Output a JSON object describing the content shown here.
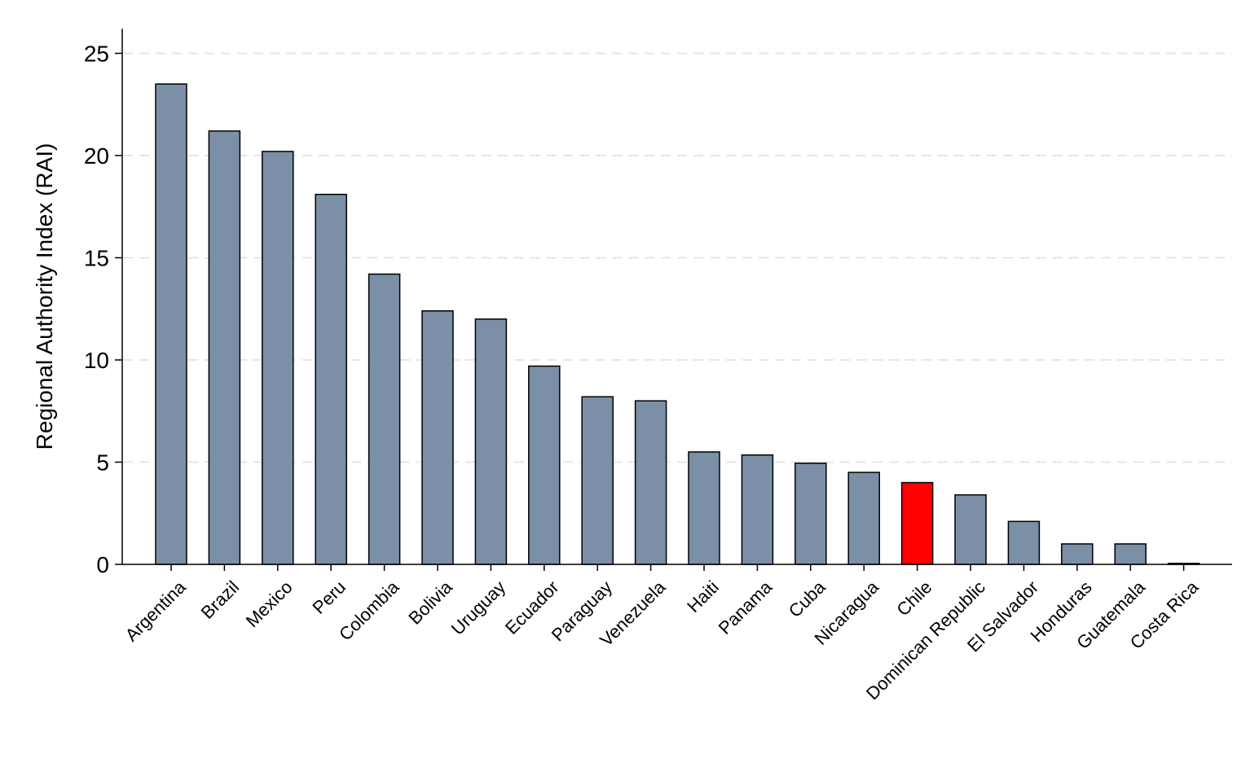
{
  "chart_data": {
    "type": "bar",
    "title": "",
    "xlabel": "",
    "ylabel": "Regional Authority Index (RAI)",
    "ylim": [
      0,
      26.2
    ],
    "yticks": [
      0,
      5,
      10,
      15,
      20,
      25
    ],
    "ytick_labels": [
      "0",
      "5",
      "10",
      "15",
      "20",
      "25"
    ],
    "grid": "horizontal dashed",
    "legend": "none",
    "categories": [
      "Argentina",
      "Brazil",
      "Mexico",
      "Peru",
      "Colombia",
      "Bolivia",
      "Uruguay",
      "Ecuador",
      "Paraguay",
      "Venezuela",
      "Haiti",
      "Panama",
      "Cuba",
      "Nicaragua",
      "Chile",
      "Dominican Republic",
      "El Salvador",
      "Honduras",
      "Guatemala",
      "Costa Rica"
    ],
    "values": [
      23.5,
      21.2,
      20.2,
      18.1,
      14.2,
      12.4,
      12.0,
      9.7,
      8.2,
      8.0,
      5.5,
      5.35,
      4.95,
      4.5,
      4.0,
      3.4,
      2.1,
      1.0,
      1.0,
      0.05
    ],
    "highlight_category": "Chile",
    "colors": {
      "bar": "#7b8fa6",
      "highlight": "#ff0000",
      "bar_edge": "#000000",
      "grid": "#e6e6e6",
      "axis": "#000000"
    }
  }
}
